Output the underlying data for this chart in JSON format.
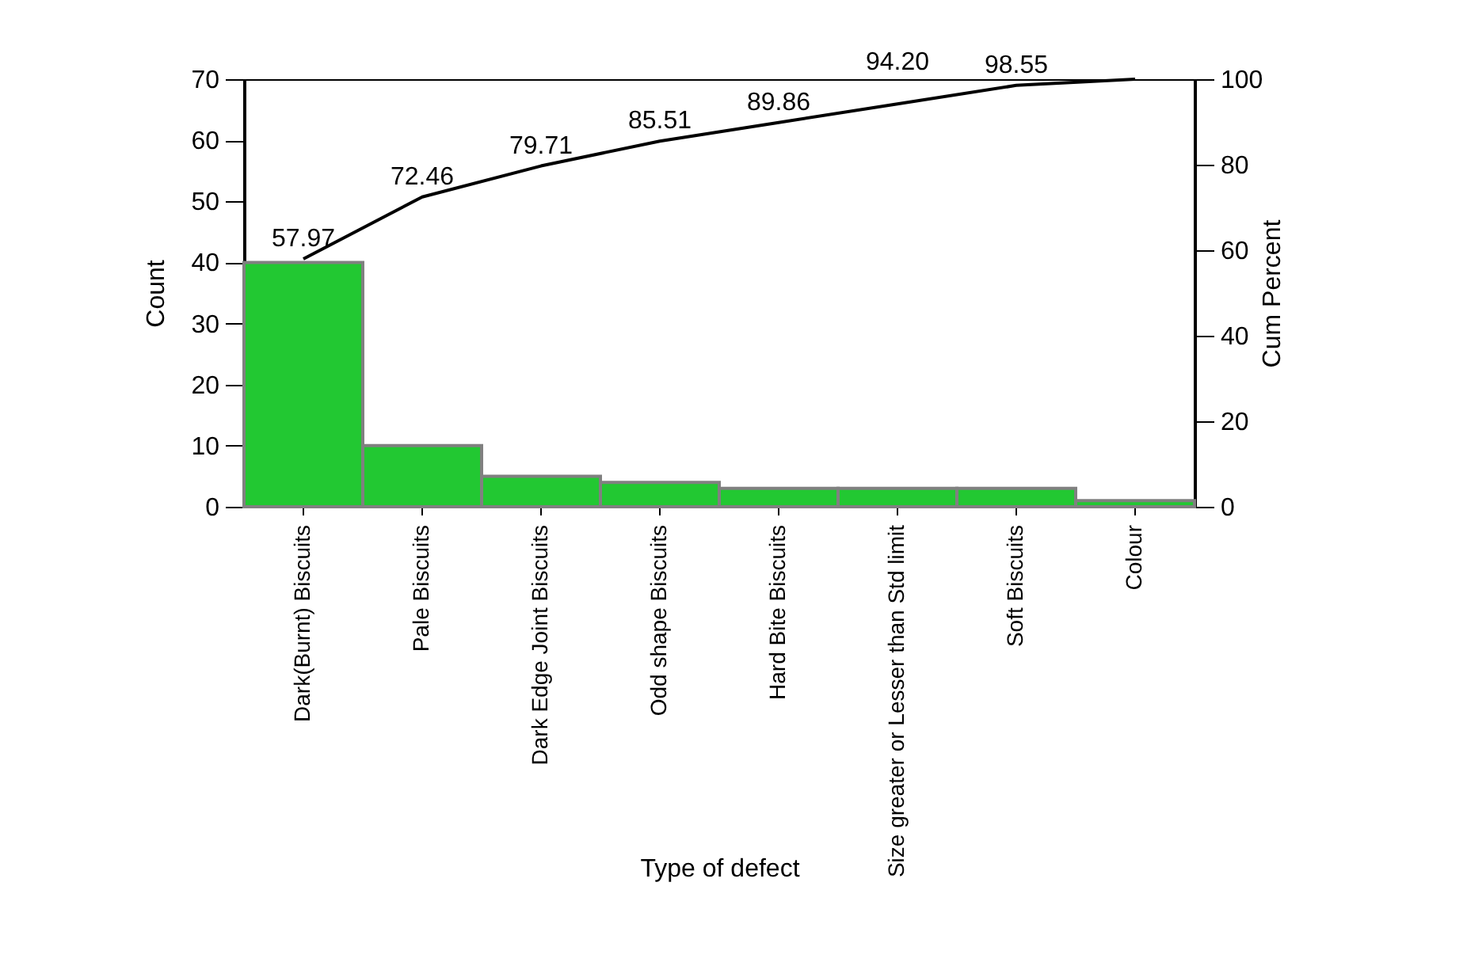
{
  "chart_data": {
    "type": "bar",
    "xlabel": "Type of defect",
    "ylabel": "Count",
    "y2label": "Cum Percent",
    "categories": [
      "Dark(Burnt) Biscuits",
      "Pale Biscuits",
      "Dark Edge Joint Biscuits",
      "Odd shape Biscuits",
      "Hard Bite Biscuits",
      "Size greater or Lesser than Std limit",
      "Soft Biscuits",
      "Colour"
    ],
    "series": [
      {
        "color": "#22c832",
        "values": [
          40,
          10,
          5,
          4,
          3,
          3,
          3,
          1
        ]
      },
      {
        "type": "line",
        "axis": "y2",
        "color": "#000000",
        "values": [
          57.97,
          72.46,
          79.71,
          85.51,
          89.86,
          94.2,
          98.55,
          100
        ],
        "value_labels": [
          "57.97",
          "72.46",
          "79.71",
          "85.51",
          "89.86",
          "94.20",
          "98.55",
          null
        ]
      }
    ],
    "ylim": [
      0,
      70
    ],
    "yticks": [
      0,
      10,
      20,
      30,
      40,
      50,
      60,
      70
    ],
    "y2lim": [
      0,
      100
    ],
    "y2ticks": [
      0,
      20,
      40,
      60,
      80,
      100
    ]
  }
}
